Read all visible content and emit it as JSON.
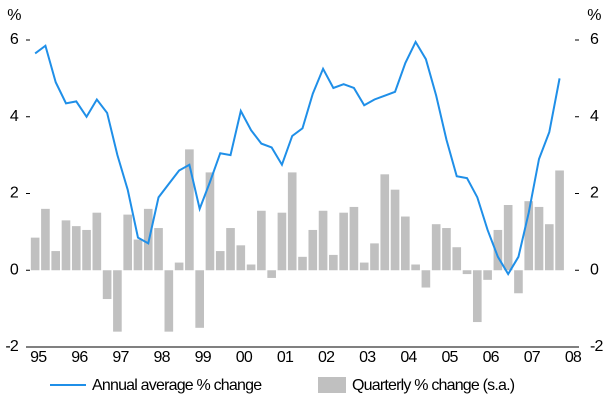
{
  "chart_data": {
    "type": "bar-line",
    "y_unit": "%",
    "y2_unit": "%",
    "categories": [
      "95",
      null,
      null,
      null,
      "96",
      null,
      null,
      null,
      "97",
      null,
      null,
      null,
      "98",
      null,
      null,
      null,
      "99",
      null,
      null,
      null,
      "00",
      null,
      null,
      null,
      "01",
      null,
      null,
      null,
      "02",
      null,
      null,
      null,
      "03",
      null,
      null,
      null,
      "04",
      null,
      null,
      null,
      "05",
      null,
      null,
      null,
      "06",
      null,
      null,
      null,
      "07",
      null,
      null,
      null,
      "08"
    ],
    "series": [
      {
        "name": "Quarterly % change (s.a.)",
        "type": "bar",
        "color": "#c0c0c0",
        "values": [
          0.85,
          1.6,
          0.5,
          1.3,
          1.15,
          1.05,
          1.5,
          -0.75,
          -1.6,
          1.45,
          0.8,
          1.6,
          1.1,
          -1.6,
          0.2,
          3.15,
          -1.5,
          2.55,
          0.5,
          1.1,
          0.65,
          0.15,
          1.55,
          -0.2,
          1.5,
          2.55,
          0.35,
          1.05,
          1.55,
          0.4,
          1.5,
          1.65,
          0.2,
          0.7,
          2.5,
          2.1,
          1.4,
          0.15,
          -0.45,
          1.2,
          1.1,
          0.6,
          -0.1,
          -1.35,
          -0.25,
          1.05,
          1.7,
          -0.6,
          1.8,
          1.65,
          1.2,
          2.6,
          null
        ]
      },
      {
        "name": "Annual average % change",
        "type": "line",
        "color": "#1f8fe8",
        "values": [
          5.65,
          5.85,
          4.9,
          4.35,
          4.4,
          4.0,
          4.45,
          4.1,
          3.0,
          2.1,
          0.85,
          0.7,
          1.9,
          2.25,
          2.6,
          2.75,
          1.6,
          2.3,
          3.05,
          3.0,
          4.15,
          3.65,
          3.3,
          3.2,
          2.75,
          3.5,
          3.7,
          4.6,
          5.25,
          4.75,
          4.85,
          4.75,
          4.3,
          4.45,
          4.55,
          4.65,
          5.4,
          5.95,
          5.5,
          4.55,
          3.4,
          2.45,
          2.4,
          1.9,
          1.05,
          0.35,
          -0.1,
          0.35,
          1.5,
          2.9,
          3.6,
          5.0,
          null
        ]
      }
    ],
    "ylim": [
      -2,
      6
    ],
    "yticks": [
      -2,
      0,
      2,
      4,
      6
    ],
    "y2lim": [
      -2,
      6
    ],
    "y2ticks": [
      -2,
      0,
      2,
      4,
      6
    ],
    "legend": "bottom"
  }
}
